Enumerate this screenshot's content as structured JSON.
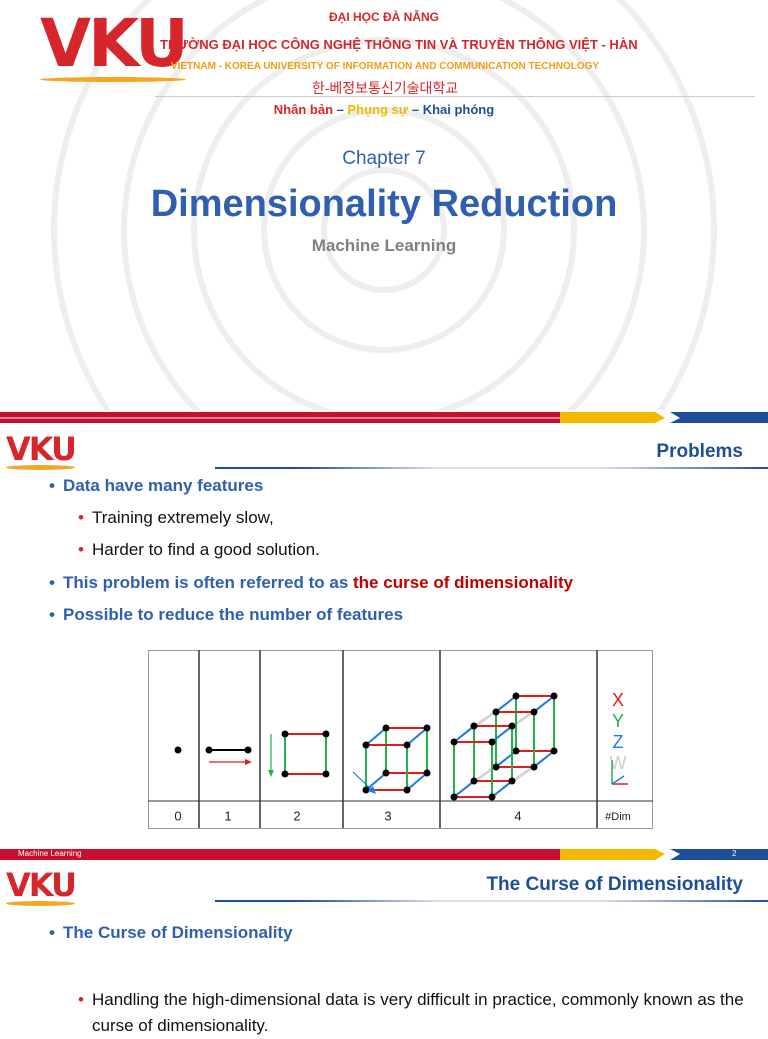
{
  "logo": "VKU",
  "slide1": {
    "header": {
      "org": "ĐẠI HỌC ĐÀ NẴNG",
      "school_vn": "TRƯỜNG ĐẠI HỌC CÔNG NGHỆ THÔNG TIN VÀ TRUYỀN THÔNG VIỆT - HÀN",
      "school_en": "VIETNAM - KOREA UNIVERSITY OF INFORMATION AND COMMUNICATION TECHNOLOGY",
      "school_kr": "한-베정보통신기술대학교",
      "motto": [
        "Nhân bản",
        "Phụng sự",
        "Khai phóng"
      ],
      "separator": "–"
    },
    "chapter": "Chapter 7",
    "title": "Dimensionality Reduction",
    "subtitle": "Machine Learning"
  },
  "slide2": {
    "title": "Problems",
    "bullets": [
      {
        "level": 1,
        "parts": [
          "Data have many features"
        ]
      },
      {
        "level": 2,
        "parts": [
          "Training extremely slow,"
        ]
      },
      {
        "level": 2,
        "parts": [
          "Harder to find a good solution."
        ]
      },
      {
        "level": 1,
        "parts": [
          "This problem is often referred to as ",
          "the curse of dimensionality"
        ]
      },
      {
        "level": 1,
        "parts": [
          "Possible to reduce the number of features"
        ]
      }
    ],
    "figure": {
      "dims": [
        "0",
        "1",
        "2",
        "3",
        "4",
        "#Dim"
      ],
      "axes": [
        "X",
        "Y",
        "Z",
        "W"
      ]
    },
    "footer": {
      "course": "Machine Learning",
      "page": "2"
    }
  },
  "slide3": {
    "title": "The Curse of Dimensionality",
    "bullets": [
      {
        "level": 1,
        "parts": [
          "The Curse of Dimensionality"
        ]
      },
      {
        "level": 2,
        "parts": [
          "Handling the high-dimensional data is very difficult in practice, commonly known as the curse of dimensionality."
        ]
      }
    ]
  }
}
